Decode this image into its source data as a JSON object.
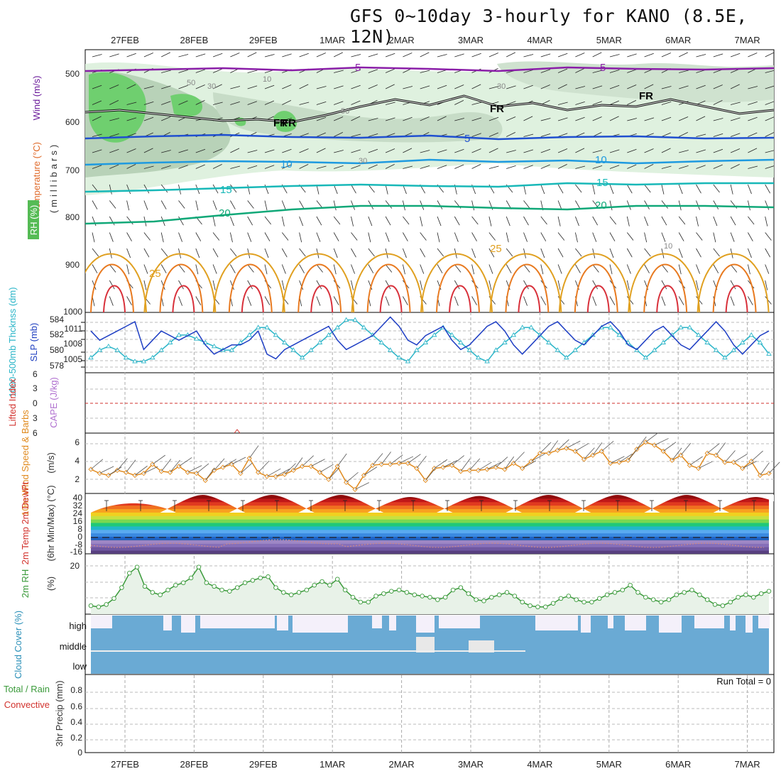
{
  "title": "GFS 0~10day 3-hourly for KANO (8.5E, 12N)",
  "dates": [
    "27FEB",
    "28FEB",
    "29FEB",
    "1MAR",
    "2MAR",
    "3MAR",
    "4MAR",
    "5MAR",
    "6MAR",
    "7MAR"
  ],
  "run_total": "Run Total = 0",
  "colors": {
    "rh_green": "#6fcf6f",
    "temp_red": "#d2322d",
    "wind_orange": "#e08a1e",
    "slp_blue": "#1f3fc4",
    "thick_cyan": "#2bb5c8",
    "cape_violet": "#a060c8",
    "rh2m_green": "#3a9a3a",
    "cloud_blue": "#6aaad4"
  },
  "panels": {
    "upper": {
      "ylabel_wind": "Wind (m/s)",
      "ylabel_temp": "Temperature (°C)",
      "ylabel_rh": "RH (%)",
      "ylabel_units": "(millibars)",
      "yticks": [
        "500",
        "600",
        "700",
        "800",
        "900",
        "1000"
      ],
      "contour_labels": [
        "5",
        "5",
        "FR",
        "FR",
        "FR",
        "FR",
        "5",
        "10",
        "10",
        "15",
        "15",
        "20",
        "20",
        "25",
        "25",
        "50",
        "30",
        "30",
        "30",
        "10",
        "50",
        "10"
      ]
    },
    "slp": {
      "ylabel_thick": "1000-500mb Thcknss (dm)",
      "ylabel_slp": "SLP (mb)",
      "left_ticks": [
        "584",
        "582",
        "580",
        "578"
      ],
      "right_ticks": [
        "1011",
        "1008",
        "1005"
      ]
    },
    "cape": {
      "ylabel_li": "Lifted Index",
      "ylabel_cape": "CAPE (J/kg)",
      "ticks": [
        "6",
        "3",
        "0",
        "3",
        "6"
      ]
    },
    "wind10": {
      "ylabel": "10m Wind Speed & Barbs",
      "units": "(m/s)",
      "ticks": [
        "6",
        "4",
        "2"
      ]
    },
    "temp2m": {
      "ylabel": "2m Temp 2m DewPt",
      "sub": "(6hr Min/Max) (°C)",
      "ticks": [
        "40",
        "32",
        "24",
        "16",
        "8",
        "0",
        "-8",
        "-16"
      ]
    },
    "rh2m": {
      "ylabel": "2m RH",
      "units": "(%)",
      "ticks": [
        "20"
      ]
    },
    "cloud": {
      "ylabel": "Cloud Cover (%)",
      "levels": [
        "high",
        "middle",
        "low"
      ]
    },
    "precip": {
      "ylabel": "3hr Precip (mm)",
      "legend_total": "Total / Rain",
      "legend_conv": "Convective",
      "ticks": [
        "0.8",
        "0.6",
        "0.4",
        "0.2",
        "0"
      ]
    }
  },
  "chart_data": [
    {
      "type": "line",
      "name": "SLP (mb)",
      "ylim": [
        1002,
        1015
      ],
      "values": [
        1011,
        1009,
        1010,
        1011,
        1012,
        1013,
        1007,
        1009,
        1011,
        1010,
        1009,
        1010,
        1011,
        1008,
        1006,
        1007,
        1008,
        1008,
        1009,
        1011,
        1006,
        1005,
        1007,
        1008,
        1009,
        1010,
        1011,
        1012,
        1009,
        1007,
        1008,
        1009,
        1010,
        1012,
        1014,
        1012,
        1009,
        1008,
        1010,
        1011,
        1012,
        1009,
        1007,
        1008,
        1010,
        1012,
        1013,
        1011,
        1008,
        1006,
        1008,
        1010,
        1012,
        1013,
        1011,
        1009,
        1008,
        1010,
        1012,
        1013,
        1011,
        1008,
        1007,
        1009,
        1011,
        1012,
        1010,
        1008,
        1007,
        1009,
        1011,
        1013,
        1011,
        1008,
        1006,
        1008,
        1010,
        1011
      ]
    },
    {
      "type": "line",
      "name": "1000-500mb Thcknss (dm)",
      "ylim": [
        577,
        585
      ],
      "values": [
        579,
        580,
        580.5,
        580,
        579,
        578.5,
        578.5,
        579,
        580,
        581,
        582,
        582,
        581.5,
        581,
        580.5,
        580,
        580,
        581,
        582,
        583,
        583,
        582,
        581,
        580,
        579,
        580,
        581,
        582,
        583,
        584,
        584,
        583,
        582,
        581,
        580,
        579,
        578.5,
        580,
        581,
        582,
        583,
        582,
        581,
        580,
        579,
        578.5,
        580,
        581,
        582,
        583,
        583,
        582,
        581,
        580,
        579,
        580,
        581,
        582,
        583,
        583,
        582,
        581,
        580,
        579,
        580,
        581,
        582,
        583,
        583,
        582,
        581,
        580,
        579,
        580,
        581,
        582,
        581,
        579.5
      ]
    },
    {
      "type": "line",
      "name": "10m Wind Speed",
      "ylim": [
        1,
        7
      ],
      "values": [
        3.4,
        3.0,
        2.8,
        3.3,
        3.1,
        2.8,
        3.0,
        3.9,
        3.2,
        3.1,
        3.7,
        3.1,
        3.0,
        2.3,
        3.3,
        3.6,
        3.9,
        3.0,
        4.5,
        3.1,
        2.7,
        2.7,
        2.9,
        3.3,
        3.7,
        3.7,
        3.1,
        2.4,
        3.7,
        2.1,
        1.4,
        2.8,
        3.8,
        3.9,
        3.9,
        4.0,
        4.0,
        3.5,
        2.3,
        3.5,
        3.6,
        3.8,
        3.2,
        3.3,
        3.3,
        3.4,
        3.6,
        3.4,
        4.0,
        3.5,
        4.2,
        5.0,
        5.0,
        5.3,
        5.5,
        5.2,
        4.4,
        4.8,
        5.2,
        4.0,
        4.1,
        4.3,
        5.4,
        6.1,
        5.8,
        5.2,
        4.3,
        4.8,
        3.8,
        3.5,
        5.0,
        4.8,
        4.1,
        4.1,
        3.5,
        4.2,
        2.8,
        3.0
      ]
    },
    {
      "type": "line",
      "name": "2m RH",
      "ylim": [
        0,
        25
      ],
      "values": [
        3.5,
        3,
        4,
        6.5,
        11,
        17,
        19.5,
        11.5,
        9,
        8,
        10,
        12,
        13,
        15,
        19.5,
        13,
        11.5,
        10,
        9.5,
        11,
        13,
        14,
        15,
        15.5,
        11,
        9,
        8,
        9,
        10,
        12,
        13.5,
        12,
        14.5,
        10,
        7,
        5,
        5,
        7.5,
        8.5,
        9.5,
        10,
        9,
        8,
        7.5,
        7,
        6,
        7,
        10,
        11,
        8.5,
        6,
        5.5,
        7,
        8,
        9,
        7.5,
        5,
        3.5,
        3,
        3,
        4.5,
        6.5,
        7.5,
        6,
        5,
        5,
        6.5,
        8,
        9,
        10,
        12,
        9,
        7,
        6,
        5,
        6,
        8,
        9,
        10,
        8,
        6,
        4,
        3.5,
        5,
        7,
        8,
        7,
        8.5,
        9.5
      ]
    },
    {
      "type": "area",
      "name": "2m Temp",
      "ylim": [
        -16,
        40
      ],
      "days": [
        "27FEB",
        "28FEB",
        "29FEB",
        "1MAR",
        "2MAR",
        "3MAR",
        "4MAR",
        "5MAR",
        "6MAR",
        "7MAR"
      ],
      "max": [
        32,
        40,
        40,
        40,
        38,
        39,
        40,
        40,
        40,
        38
      ],
      "min": [
        24,
        24,
        24,
        24,
        24,
        24,
        24,
        24,
        24,
        24
      ]
    }
  ]
}
